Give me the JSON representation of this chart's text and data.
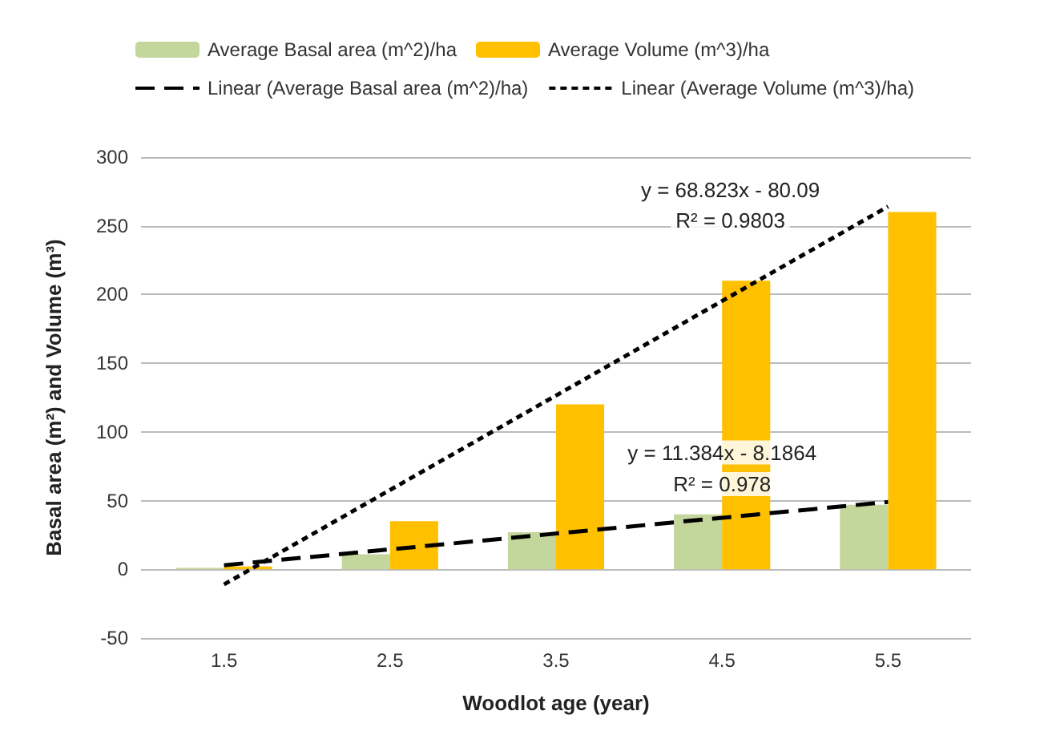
{
  "chart_data": {
    "type": "bar",
    "xlabel": "Woodlot age (year)",
    "ylabel": "Basal area (m²) and Volume (m³)",
    "categories": [
      "1.5",
      "2.5",
      "3.5",
      "4.5",
      "5.5"
    ],
    "series": [
      {
        "name": "Average Basal area (m^2)/ha",
        "color": "#c3d69b",
        "values": [
          1,
          11,
          27,
          40,
          47
        ]
      },
      {
        "name": "Average Volume (m^3)/ha",
        "color": "#ffc000",
        "values": [
          2,
          35,
          120,
          210,
          260
        ]
      },
      {
        "name": "Linear (Average Basal area (m^2)/ha)",
        "type": "line",
        "color": "#000000",
        "line_style": "dashed",
        "x": [
          "1.5",
          "5.5"
        ],
        "values": [
          3,
          49
        ]
      },
      {
        "name": "Linear (Average Volume (m^3)/ha)",
        "type": "line",
        "color": "#000000",
        "line_style": "dotted",
        "x": [
          "1.5",
          "5.5"
        ],
        "values": [
          -11,
          264
        ]
      }
    ],
    "ylim": [
      -50,
      300
    ],
    "yticks": [
      -50,
      0,
      50,
      100,
      150,
      200,
      250,
      300
    ],
    "grid": "y",
    "legend": "top",
    "marker": "none",
    "annotations": [
      "y = 68.823x - 80.09",
      "R² = 0.9803",
      "y = 11.384x - 8.1864",
      "R² = 0.978"
    ]
  }
}
